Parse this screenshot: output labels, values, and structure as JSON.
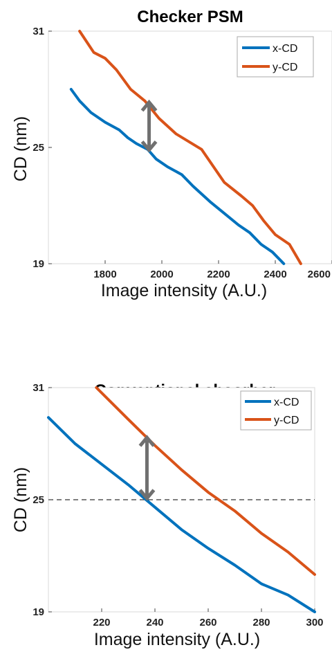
{
  "chart_data": [
    {
      "type": "line",
      "title": "Checker PSM",
      "xlabel": "Image intensity (A.U.)",
      "ylabel": "CD (nm)",
      "xlim": [
        1600,
        2600
      ],
      "ylim": [
        19,
        31
      ],
      "xticks": [
        1800,
        2000,
        2200,
        2400,
        2600
      ],
      "yticks": [
        19,
        25,
        31
      ],
      "legend": "top-right",
      "grid": false,
      "series": [
        {
          "name": "x-CD",
          "color": "#0072BD",
          "points": [
            [
              1680,
              28
            ],
            [
              1710,
              27.4
            ],
            [
              1750,
              26.8
            ],
            [
              1800,
              26.3
            ],
            [
              1850,
              25.9
            ],
            [
              1880,
              25.5
            ],
            [
              1910,
              25.2
            ],
            [
              1950,
              24.9
            ],
            [
              1980,
              24.4
            ],
            [
              2020,
              24
            ],
            [
              2070,
              23.6
            ],
            [
              2110,
              23
            ],
            [
              2170,
              22.2
            ],
            [
              2220,
              21.6
            ],
            [
              2270,
              21
            ],
            [
              2310,
              20.6
            ],
            [
              2350,
              20
            ],
            [
              2390,
              19.6
            ],
            [
              2430,
              19
            ]
          ]
        },
        {
          "name": "y-CD",
          "color": "#D95319",
          "points": [
            [
              1710,
              31
            ],
            [
              1760,
              29.9
            ],
            [
              1800,
              29.6
            ],
            [
              1840,
              29
            ],
            [
              1890,
              28
            ],
            [
              1940,
              27.4
            ],
            [
              1990,
              26.5
            ],
            [
              2050,
              25.7
            ],
            [
              2140,
              24.9
            ],
            [
              2220,
              23.2
            ],
            [
              2280,
              22.5
            ],
            [
              2320,
              22
            ],
            [
              2360,
              21.2
            ],
            [
              2400,
              20.5
            ],
            [
              2450,
              20
            ],
            [
              2490,
              19
            ]
          ]
        }
      ],
      "annotations": [
        {
          "type": "double-arrow",
          "x": 1955,
          "y1": 24.8,
          "y2": 27.4,
          "color": "#707070"
        }
      ]
    },
    {
      "type": "line",
      "title": "Conventional absorber",
      "xlabel": "Image intensity (A.U.)",
      "ylabel": "CD (nm)",
      "xlim": [
        200,
        300
      ],
      "ylim": [
        19,
        31
      ],
      "xticks": [
        220,
        240,
        260,
        280,
        300
      ],
      "yticks": [
        19,
        25,
        31
      ],
      "legend": "top-right",
      "grid": false,
      "reference_line": {
        "y": 25,
        "style": "dashed"
      },
      "series": [
        {
          "name": "x-CD",
          "color": "#0072BD",
          "points": [
            [
              200,
              29.4
            ],
            [
              210,
              28
            ],
            [
              220,
              26.9
            ],
            [
              230,
              25.8
            ],
            [
              240,
              24.6
            ],
            [
              250,
              23.4
            ],
            [
              260,
              22.4
            ],
            [
              270,
              21.5
            ],
            [
              280,
              20.5
            ],
            [
              290,
              19.9
            ],
            [
              300,
              19
            ]
          ]
        },
        {
          "name": "y-CD",
          "color": "#D95319",
          "points": [
            [
              218,
              31
            ],
            [
              230,
              29.3
            ],
            [
              240,
              27.9
            ],
            [
              250,
              26.6
            ],
            [
              260,
              25.4
            ],
            [
              270,
              24.4
            ],
            [
              280,
              23.2
            ],
            [
              290,
              22.2
            ],
            [
              300,
              21
            ]
          ]
        }
      ],
      "annotations": [
        {
          "type": "double-arrow",
          "x": 237,
          "y1": 25,
          "y2": 28.4,
          "color": "#707070"
        }
      ]
    }
  ]
}
